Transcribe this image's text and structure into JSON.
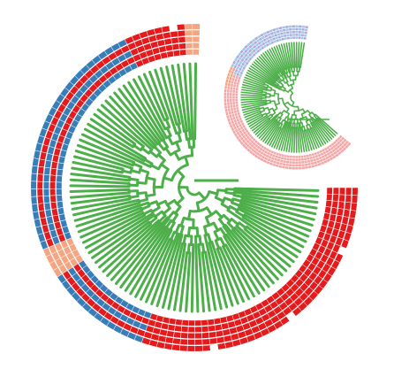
{
  "colors": {
    "background": "#ffffff",
    "branch": "#4daf4a",
    "red": "#e41a1c",
    "blue": "#377eb8",
    "orange": "#f4a582",
    "pink": "#f4a6a6",
    "lavender": "#b3a6e0",
    "light_blue": "#9ecae1"
  },
  "large_tree": {
    "tip_count": 100,
    "ring_count": 5,
    "outer_rings": [
      "orange",
      "orange",
      "red",
      "red",
      "red",
      "red",
      "red",
      "red",
      "red",
      "red",
      "blue",
      "blue",
      "blue",
      "blue",
      "blue",
      "blue",
      "blue",
      "blue",
      "blue",
      "blue",
      "blue",
      "blue",
      "blue",
      "blue",
      "blue",
      "blue",
      "blue",
      "blue",
      "blue",
      "blue",
      "blue",
      "blue",
      "blue",
      "blue",
      "blue",
      "blue",
      "blue",
      "blue",
      "blue",
      "blue",
      "blue",
      "blue",
      "orange",
      "orange",
      "orange",
      "orange",
      "blue",
      "blue",
      "blue",
      "blue",
      "blue",
      "blue",
      "blue",
      "blue",
      "blue",
      "blue",
      "blue",
      "blue",
      "blue",
      "blue",
      "red",
      "red",
      "red",
      "red",
      "red",
      "red",
      "red",
      "red",
      "red",
      "red",
      "red",
      "red",
      "red",
      "red",
      "red",
      "red",
      "red",
      "red",
      "red",
      "red",
      "red",
      "red",
      "red",
      "red",
      "red",
      "red",
      "red",
      "red",
      "red",
      "red",
      "red",
      "red",
      "red",
      "red",
      "red",
      "red",
      "red",
      "red",
      "red",
      "red"
    ],
    "inner_rings": [
      "blue",
      "red",
      "blue",
      "red",
      "blue"
    ]
  },
  "small_tree": {
    "tip_count": 90,
    "ring_palette": [
      "lavender",
      "light_blue",
      "pink",
      "orange",
      "pink"
    ]
  }
}
